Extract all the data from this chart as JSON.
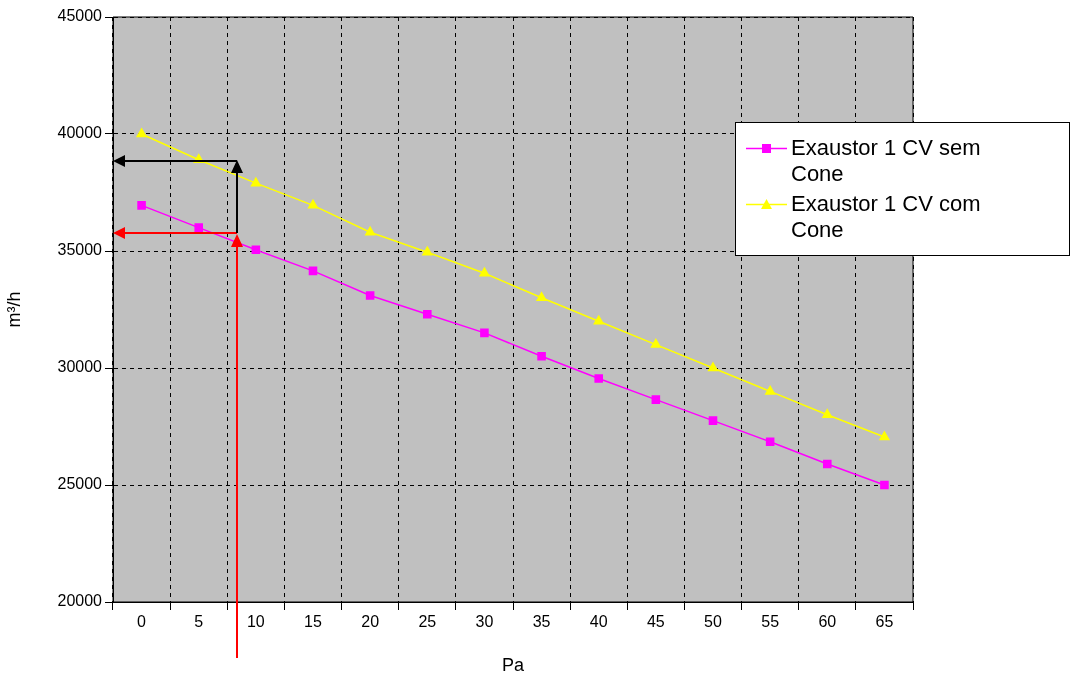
{
  "chart_data": {
    "type": "line",
    "xlabel": "Pa",
    "ylabel": "m³/h",
    "categories": [
      "0",
      "5",
      "10",
      "15",
      "20",
      "25",
      "30",
      "35",
      "40",
      "45",
      "50",
      "55",
      "60",
      "65"
    ],
    "series": [
      {
        "name": "Exaustor 1 CV sem Cone",
        "color": "#ff00ff",
        "marker": "square",
        "values": [
          36950,
          36000,
          35050,
          34150,
          33100,
          32300,
          31500,
          30500,
          29550,
          28650,
          27750,
          26850,
          25900,
          25000
        ]
      },
      {
        "name": "Exaustor 1 CV com Cone",
        "color": "#ffff00",
        "marker": "triangle",
        "values": [
          40000,
          38900,
          37900,
          36950,
          35800,
          34950,
          34050,
          33000,
          32000,
          31000,
          30000,
          29000,
          28000,
          27050
        ]
      }
    ],
    "ylim": [
      20000,
      45000
    ],
    "yticks": [
      20000,
      25000,
      30000,
      35000,
      40000,
      45000
    ],
    "grid": true,
    "legend": "top right"
  }
}
